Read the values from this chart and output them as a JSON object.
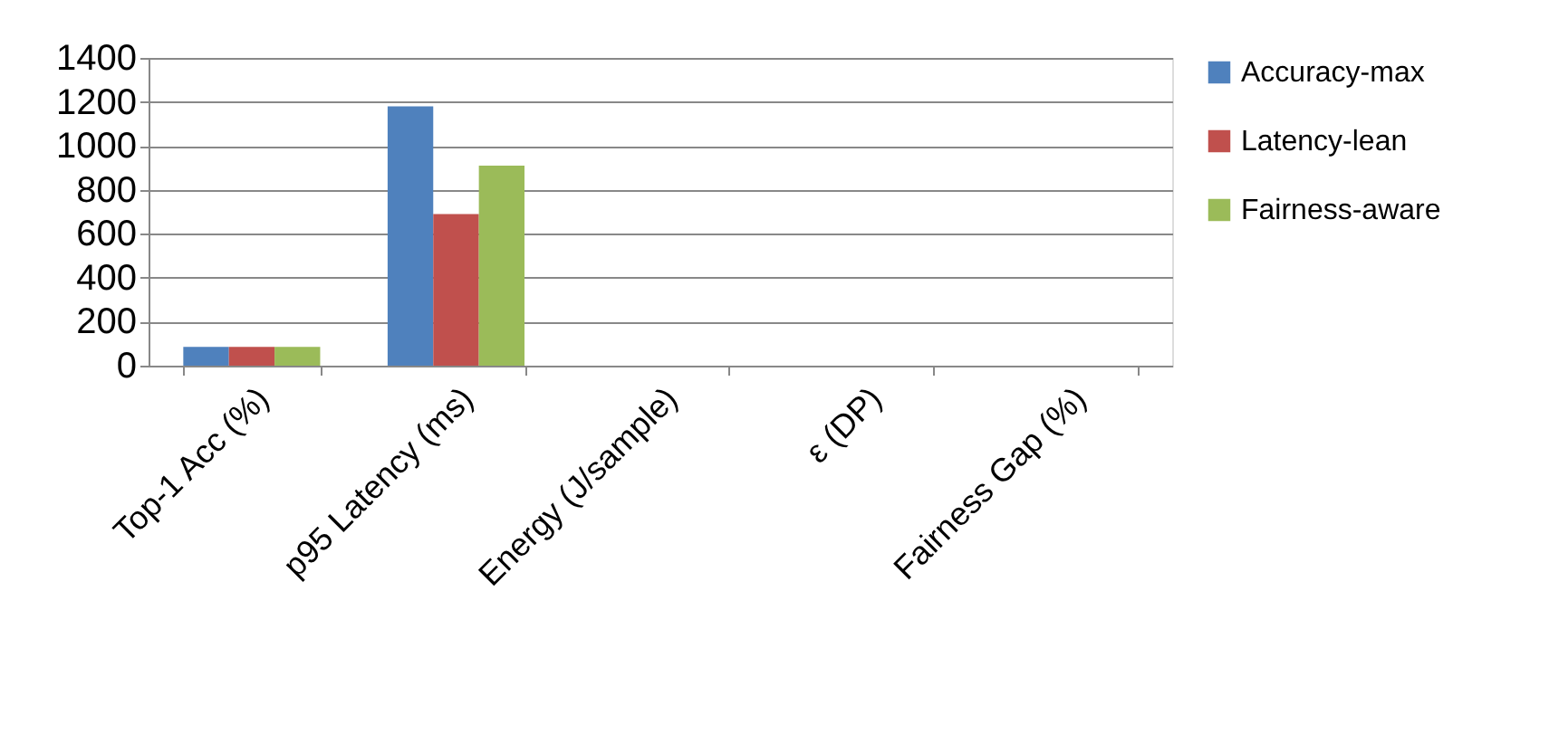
{
  "chart_data": {
    "type": "bar",
    "categories": [
      "Top-1 Acc (%)",
      "p95 Latency (ms)",
      "Energy (J/sample)",
      "ε (DP)",
      "Fairness Gap (%)"
    ],
    "series": [
      {
        "name": "Accuracy-max",
        "color": "#4f81bd",
        "values": [
          85,
          1180,
          0,
          0,
          0
        ]
      },
      {
        "name": "Latency-lean",
        "color": "#c0504d",
        "values": [
          85,
          690,
          0,
          0,
          0
        ]
      },
      {
        "name": "Fairness-aware",
        "color": "#9bbb59",
        "values": [
          85,
          910,
          0,
          0,
          0
        ]
      }
    ],
    "ylim": [
      0,
      1400
    ],
    "yticks": [
      0,
      200,
      400,
      600,
      800,
      1000,
      1200,
      1400
    ],
    "grid": "y",
    "legend": "right"
  }
}
